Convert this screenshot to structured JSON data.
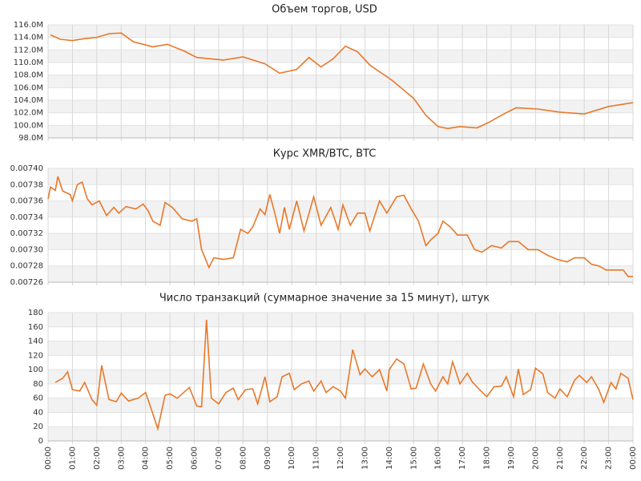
{
  "chart_data": [
    {
      "type": "line",
      "title": "Объем торгов, USD",
      "color": "#e8782a",
      "xlim": [
        0,
        24
      ],
      "ylim": [
        98000000,
        116000000
      ],
      "yticks": [
        {
          "value": 98000000,
          "label": "98.0M"
        },
        {
          "value": 100000000,
          "label": "100.0M"
        },
        {
          "value": 102000000,
          "label": "102.0M"
        },
        {
          "value": 104000000,
          "label": "104.0M"
        },
        {
          "value": 106000000,
          "label": "106.0M"
        },
        {
          "value": 108000000,
          "label": "108.0M"
        },
        {
          "value": 110000000,
          "label": "110.0M"
        },
        {
          "value": 112000000,
          "label": "112.0M"
        },
        {
          "value": 114000000,
          "label": "114.0M"
        },
        {
          "value": 116000000,
          "label": "116.0M"
        }
      ],
      "x": [
        0.1,
        0.5,
        1.0,
        1.5,
        2.0,
        2.5,
        3.0,
        3.5,
        4.3,
        4.9,
        5.6,
        6.1,
        7.2,
        8.0,
        8.9,
        9.5,
        10.2,
        10.7,
        11.2,
        11.7,
        12.2,
        12.7,
        13.2,
        14.1,
        15.0,
        15.5,
        16.0,
        16.4,
        16.9,
        17.6,
        18.1,
        18.6,
        19.2,
        20.1,
        21.0,
        22.0,
        23.0,
        24.0
      ],
      "values": [
        114400000,
        113700000,
        113500000,
        113800000,
        114000000,
        114600000,
        114700000,
        113300000,
        112500000,
        112900000,
        111800000,
        110800000,
        110400000,
        110900000,
        109800000,
        108300000,
        108900000,
        110800000,
        109300000,
        110600000,
        112600000,
        111700000,
        109600000,
        107200000,
        104300000,
        101600000,
        99800000,
        99500000,
        99800000,
        99600000,
        100500000,
        101600000,
        102800000,
        102600000,
        102100000,
        101800000,
        103000000,
        103600000
      ]
    },
    {
      "type": "line",
      "title": "Курс XMR/BTC, BTC",
      "color": "#e8782a",
      "xlim": [
        0,
        24
      ],
      "ylim": [
        0.00726,
        0.0074
      ],
      "yticks": [
        {
          "value": 0.00726,
          "label": "0.00726"
        },
        {
          "value": 0.00728,
          "label": "0.00728"
        },
        {
          "value": 0.0073,
          "label": "0.00730"
        },
        {
          "value": 0.00732,
          "label": "0.00732"
        },
        {
          "value": 0.00734,
          "label": "0.00734"
        },
        {
          "value": 0.00736,
          "label": "0.00736"
        },
        {
          "value": 0.00738,
          "label": "0.00738"
        },
        {
          "value": 0.0074,
          "label": "0.00740"
        }
      ],
      "x": [
        0,
        0.1,
        0.3,
        0.4,
        0.6,
        0.9,
        1.0,
        1.2,
        1.4,
        1.6,
        1.8,
        2.1,
        2.4,
        2.7,
        2.9,
        3.2,
        3.6,
        3.9,
        4.1,
        4.3,
        4.6,
        4.8,
        5.1,
        5.5,
        5.9,
        6.1,
        6.3,
        6.6,
        6.8,
        7.2,
        7.6,
        7.9,
        8.2,
        8.4,
        8.7,
        8.9,
        9.1,
        9.3,
        9.5,
        9.7,
        9.9,
        10.2,
        10.5,
        10.9,
        11.2,
        11.6,
        11.9,
        12.1,
        12.4,
        12.7,
        13.0,
        13.2,
        13.6,
        13.9,
        14.3,
        14.6,
        14.9,
        15.2,
        15.5,
        15.7,
        16.0,
        16.2,
        16.5,
        16.8,
        17.2,
        17.5,
        17.8,
        18.2,
        18.6,
        18.9,
        19.3,
        19.7,
        20.1,
        20.5,
        20.9,
        21.3,
        21.6,
        22.0,
        22.3,
        22.6,
        22.9,
        23.3,
        23.6,
        23.8,
        24.0
      ],
      "values": [
        0.007362,
        0.007377,
        0.007373,
        0.00739,
        0.007372,
        0.007368,
        0.00736,
        0.00738,
        0.007383,
        0.007363,
        0.007355,
        0.00736,
        0.007342,
        0.007352,
        0.007345,
        0.007353,
        0.00735,
        0.007356,
        0.007348,
        0.007335,
        0.00733,
        0.007358,
        0.007352,
        0.007338,
        0.007335,
        0.007338,
        0.0073,
        0.007278,
        0.00729,
        0.007288,
        0.00729,
        0.007325,
        0.00732,
        0.007328,
        0.00735,
        0.007343,
        0.007368,
        0.007345,
        0.00732,
        0.007352,
        0.007325,
        0.00736,
        0.007323,
        0.007365,
        0.00733,
        0.007352,
        0.007325,
        0.007355,
        0.00733,
        0.007345,
        0.007345,
        0.007323,
        0.00736,
        0.007345,
        0.007365,
        0.007367,
        0.00735,
        0.007335,
        0.007305,
        0.007312,
        0.00732,
        0.007335,
        0.007328,
        0.007318,
        0.007318,
        0.0073,
        0.007297,
        0.007305,
        0.007302,
        0.00731,
        0.00731,
        0.0073,
        0.0073,
        0.007293,
        0.007288,
        0.007285,
        0.00729,
        0.00729,
        0.007282,
        0.00728,
        0.007275,
        0.007275,
        0.007275,
        0.007267,
        0.007267
      ]
    },
    {
      "type": "line",
      "title": "Число транзакций (суммарное значение за 15 минут), штук",
      "color": "#e8782a",
      "xlim": [
        0,
        24
      ],
      "ylim": [
        0,
        180
      ],
      "yticks": [
        0,
        20,
        40,
        60,
        80,
        100,
        120,
        140,
        160,
        180
      ],
      "xticks": [
        {
          "value": 0,
          "label": "00:00"
        },
        {
          "value": 1,
          "label": "01:00"
        },
        {
          "value": 2,
          "label": "02:00"
        },
        {
          "value": 3,
          "label": "03:00"
        },
        {
          "value": 4,
          "label": "04:00"
        },
        {
          "value": 5,
          "label": "05:00"
        },
        {
          "value": 6,
          "label": "06:00"
        },
        {
          "value": 7,
          "label": "07:00"
        },
        {
          "value": 8,
          "label": "08:00"
        },
        {
          "value": 9,
          "label": "09:00"
        },
        {
          "value": 10,
          "label": "10:00"
        },
        {
          "value": 11,
          "label": "11:00"
        },
        {
          "value": 12,
          "label": "12:00"
        },
        {
          "value": 13,
          "label": "13:00"
        },
        {
          "value": 14,
          "label": "14:00"
        },
        {
          "value": 15,
          "label": "15:00"
        },
        {
          "value": 16,
          "label": "16:00"
        },
        {
          "value": 17,
          "label": "17:00"
        },
        {
          "value": 18,
          "label": "18:00"
        },
        {
          "value": 19,
          "label": "19:00"
        },
        {
          "value": 20,
          "label": "20:00"
        },
        {
          "value": 21,
          "label": "21:00"
        },
        {
          "value": 22,
          "label": "22:00"
        },
        {
          "value": 23,
          "label": "23:00"
        },
        {
          "value": 24,
          "label": "00:00"
        }
      ],
      "x": [
        0.3,
        0.6,
        0.8,
        1.0,
        1.3,
        1.5,
        1.8,
        2.0,
        2.2,
        2.5,
        2.8,
        3.0,
        3.3,
        3.7,
        4.0,
        4.3,
        4.5,
        4.8,
        5.0,
        5.3,
        5.8,
        6.1,
        6.3,
        6.5,
        6.7,
        7.0,
        7.3,
        7.6,
        7.8,
        8.1,
        8.4,
        8.6,
        8.9,
        9.1,
        9.4,
        9.6,
        9.9,
        10.1,
        10.4,
        10.7,
        10.9,
        11.2,
        11.4,
        11.7,
        12.0,
        12.2,
        12.5,
        12.8,
        13.0,
        13.3,
        13.6,
        13.9,
        14.0,
        14.3,
        14.6,
        14.9,
        15.1,
        15.4,
        15.7,
        15.9,
        16.2,
        16.4,
        16.6,
        16.9,
        17.2,
        17.4,
        17.7,
        18.0,
        18.3,
        18.6,
        18.8,
        19.1,
        19.3,
        19.5,
        19.8,
        20.0,
        20.3,
        20.5,
        20.8,
        21.0,
        21.3,
        21.6,
        21.8,
        22.1,
        22.3,
        22.6,
        22.8,
        23.1,
        23.3,
        23.5,
        23.8,
        24.0
      ],
      "values": [
        82,
        88,
        97,
        72,
        70,
        82,
        58,
        50,
        106,
        58,
        55,
        67,
        56,
        60,
        68,
        38,
        17,
        64,
        66,
        60,
        75,
        49,
        48,
        170,
        60,
        52,
        68,
        74,
        58,
        72,
        73,
        52,
        90,
        55,
        62,
        90,
        95,
        72,
        80,
        84,
        70,
        84,
        68,
        76,
        70,
        60,
        128,
        93,
        101,
        90,
        100,
        70,
        100,
        115,
        108,
        73,
        74,
        108,
        80,
        70,
        90,
        80,
        111,
        80,
        95,
        83,
        72,
        62,
        76,
        77,
        90,
        62,
        101,
        65,
        72,
        102,
        94,
        68,
        60,
        73,
        62,
        85,
        92,
        82,
        90,
        72,
        54,
        82,
        73,
        95,
        88,
        58
      ]
    }
  ]
}
